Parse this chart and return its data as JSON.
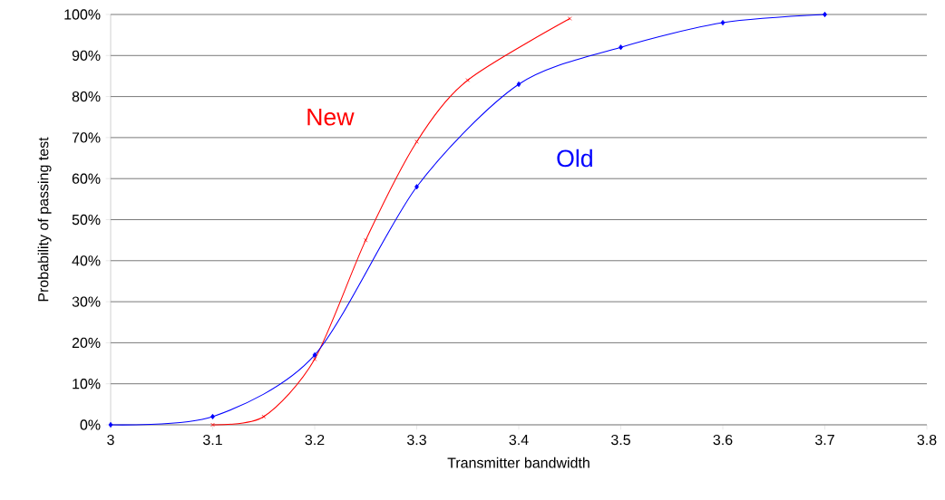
{
  "chart_data": {
    "type": "line",
    "xlabel": "Transmitter bandwidth",
    "ylabel": "Probability of passing test",
    "xlim": [
      3,
      3.8
    ],
    "xticks": [
      3,
      3.1,
      3.2,
      3.3,
      3.4,
      3.5,
      3.6,
      3.7,
      3.8
    ],
    "ylim": [
      0,
      100
    ],
    "yticks": [
      {
        "value": 0,
        "label": "0%"
      },
      {
        "value": 10,
        "label": "10%"
      },
      {
        "value": 20,
        "label": "20%"
      },
      {
        "value": 30,
        "label": "30%"
      },
      {
        "value": 40,
        "label": "40%"
      },
      {
        "value": 50,
        "label": "50%"
      },
      {
        "value": 60,
        "label": "60%"
      },
      {
        "value": 70,
        "label": "70%"
      },
      {
        "value": 80,
        "label": "80%"
      },
      {
        "value": 90,
        "label": "90%"
      },
      {
        "value": 100,
        "label": "100%"
      }
    ],
    "grid": "y",
    "legend": false,
    "series": [
      {
        "name": "New",
        "color": "#ff0000",
        "marker": "cross",
        "x": [
          3.1,
          3.15,
          3.2,
          3.25,
          3.3,
          3.35,
          3.45
        ],
        "values": [
          0,
          2,
          16,
          45,
          69,
          84,
          99
        ]
      },
      {
        "name": "Old",
        "color": "#0000ff",
        "marker": "diamond",
        "x": [
          3,
          3.1,
          3.2,
          3.3,
          3.4,
          3.5,
          3.6,
          3.7
        ],
        "values": [
          0,
          2,
          17,
          58,
          83,
          92,
          98,
          100
        ]
      }
    ]
  }
}
